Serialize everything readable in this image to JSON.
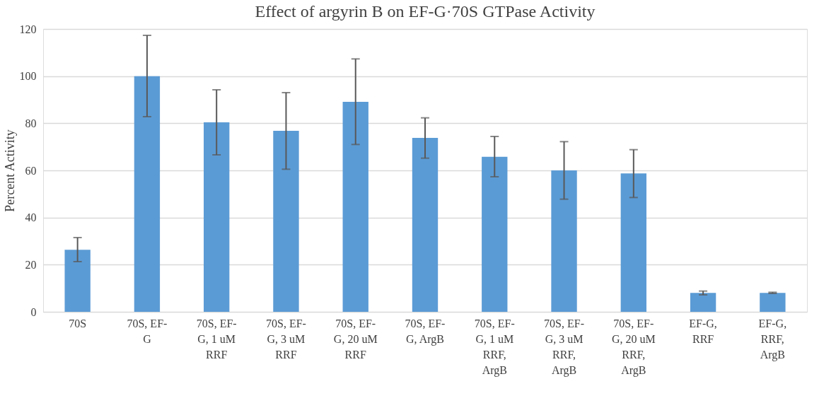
{
  "chart_data": {
    "type": "bar",
    "title": "Effect of argyrin B on EF-G·70S GTPase Activity",
    "ylabel": "Percent Activity",
    "categories": [
      "70S",
      "70S, EF-G",
      "70S, EF-G, 1 uM RRF",
      "70S, EF-G, 3 uM RRF",
      "70S, EF-G, 20 uM RRF",
      "70S, EF-G, ArgB",
      "70S, EF-G, 1 uM RRF, ArgB",
      "70S, EF-G, 3 uM RRF, ArgB",
      "70S, EF-G, 20 uM RRF, ArgB",
      "EF-G, RRF",
      "EF-G, RRF, ArgB"
    ],
    "values": [
      26.3,
      100,
      80.4,
      76.8,
      89.1,
      73.8,
      65.8,
      60.0,
      58.7,
      8.0,
      8.0
    ],
    "errors": [
      [
        21.3,
        31.5
      ],
      [
        82.8,
        117.3
      ],
      [
        66.6,
        94.2
      ],
      [
        60.5,
        93.0
      ],
      [
        71.0,
        107.3
      ],
      [
        65.2,
        82.3
      ],
      [
        57.3,
        74.4
      ],
      [
        47.8,
        72.2
      ],
      [
        48.5,
        68.8
      ],
      [
        7.2,
        8.8
      ],
      [
        7.8,
        8.3
      ]
    ],
    "color": "#5b9bd5",
    "ylim": [
      0,
      120
    ],
    "yticks": [
      0,
      20,
      40,
      60,
      80,
      100,
      120
    ],
    "grid": "y"
  }
}
